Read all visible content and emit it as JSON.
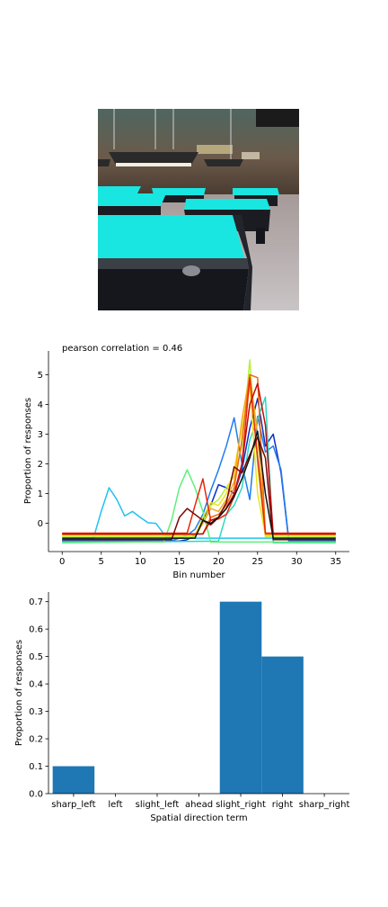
{
  "image": {
    "description": "",
    "colors": {
      "wall": "#6b5a4a",
      "felt": "#19e6e0",
      "table_body": "#1a1c22",
      "floor": "#b8b2b2",
      "lamp": "#2b2b2b"
    }
  },
  "chart_data": [
    {
      "type": "line",
      "title": "pearson correlation = 0.46",
      "xlabel": "Bin number",
      "ylabel": "Proportion of responses",
      "xlim": [
        -1.75,
        36.75
      ],
      "ylim": [
        -0.95,
        5.8
      ],
      "xticks": [
        0,
        5,
        10,
        15,
        20,
        25,
        30,
        35
      ],
      "yticks": [
        0,
        1,
        2,
        3,
        4,
        5
      ],
      "grid": false,
      "series": [
        {
          "color": "#0b2fc4",
          "x": [
            0,
            13,
            14,
            15,
            16,
            17,
            18,
            19,
            20,
            21,
            22,
            23,
            24,
            25,
            26,
            27,
            28,
            29,
            30,
            35
          ],
          "y": [
            -0.6,
            -0.6,
            -0.6,
            -0.6,
            -0.55,
            -0.4,
            0.1,
            0.6,
            1.3,
            1.2,
            1.0,
            1.8,
            3.2,
            4.2,
            2.6,
            3.0,
            1.7,
            -0.6,
            -0.6,
            -0.6
          ]
        },
        {
          "color": "#1f7cf0",
          "x": [
            0,
            14,
            15,
            16,
            17,
            18,
            19,
            20,
            21,
            22,
            23,
            24,
            25,
            26,
            27,
            28,
            29,
            35
          ],
          "y": [
            -0.58,
            -0.58,
            -0.5,
            -0.4,
            -0.2,
            0.3,
            1.1,
            1.8,
            2.6,
            3.55,
            2.0,
            0.8,
            3.6,
            2.4,
            2.6,
            1.8,
            -0.58,
            -0.58
          ]
        },
        {
          "color": "#1fc2ee",
          "x": [
            0,
            4,
            5,
            6,
            7,
            8,
            9,
            10,
            11,
            12,
            13,
            14,
            15,
            16,
            17,
            18,
            35
          ],
          "y": [
            -0.5,
            -0.5,
            0.4,
            1.2,
            0.8,
            0.25,
            0.4,
            0.2,
            0.02,
            0.0,
            -0.35,
            -0.5,
            -0.5,
            -0.5,
            -0.5,
            -0.5,
            -0.5
          ]
        },
        {
          "color": "#2bd9c0",
          "x": [
            0,
            20,
            21,
            22,
            23,
            24,
            25,
            26,
            27,
            35
          ],
          "y": [
            -0.65,
            -0.6,
            0.3,
            0.6,
            1.2,
            2.8,
            3.5,
            4.25,
            -0.65,
            -0.65
          ]
        },
        {
          "color": "#5cf07a",
          "x": [
            0,
            13,
            14,
            15,
            16,
            17,
            18,
            19,
            35
          ],
          "y": [
            -0.63,
            -0.63,
            0.1,
            1.2,
            1.8,
            1.2,
            0.4,
            -0.63,
            -0.63
          ]
        },
        {
          "color": "#b8f03a",
          "x": [
            0,
            17,
            18,
            19,
            20,
            21,
            22,
            23,
            24,
            25,
            26,
            27,
            35
          ],
          "y": [
            -0.45,
            -0.45,
            0.0,
            0.6,
            0.8,
            1.2,
            1.6,
            2.6,
            5.5,
            2.0,
            -0.45,
            -0.45,
            -0.45
          ]
        },
        {
          "color": "#f0e21f",
          "x": [
            0,
            17,
            18,
            19,
            20,
            21,
            22,
            23,
            24,
            25,
            26,
            35
          ],
          "y": [
            -0.4,
            -0.4,
            0.2,
            0.7,
            0.6,
            1.0,
            1.8,
            3.2,
            4.6,
            1.0,
            -0.4,
            -0.4
          ]
        },
        {
          "color": "#f5a91c",
          "x": [
            0,
            17,
            18,
            19,
            20,
            21,
            22,
            23,
            24,
            25,
            26,
            27,
            35
          ],
          "y": [
            -0.38,
            -0.38,
            0.0,
            0.5,
            0.4,
            0.8,
            1.4,
            3.5,
            5.0,
            3.0,
            -0.38,
            -0.38,
            -0.38
          ]
        },
        {
          "color": "#f06a0f",
          "x": [
            0,
            18,
            19,
            20,
            21,
            22,
            23,
            24,
            25,
            26,
            35
          ],
          "y": [
            -0.35,
            -0.35,
            0.2,
            0.3,
            0.6,
            1.2,
            2.8,
            5.0,
            4.9,
            -0.35,
            -0.35
          ]
        },
        {
          "color": "#e8260a",
          "x": [
            0,
            16,
            17,
            18,
            19,
            20,
            21,
            22,
            23,
            24,
            25,
            26,
            27,
            35
          ],
          "y": [
            -0.33,
            -0.33,
            0.6,
            1.5,
            0.1,
            0.15,
            0.3,
            0.9,
            2.0,
            4.9,
            2.2,
            -0.33,
            -0.33,
            -0.33
          ]
        },
        {
          "color": "#c40a0a",
          "x": [
            0,
            18,
            19,
            20,
            21,
            22,
            23,
            24,
            25,
            26,
            27,
            35
          ],
          "y": [
            -0.36,
            -0.36,
            0.1,
            0.2,
            0.5,
            1.0,
            2.0,
            4.0,
            4.7,
            3.3,
            -0.36,
            -0.36
          ]
        },
        {
          "color": "#7a0606",
          "x": [
            0,
            14,
            15,
            16,
            17,
            18,
            19,
            20,
            21,
            22,
            23,
            24,
            25,
            26,
            27,
            35
          ],
          "y": [
            -0.55,
            -0.55,
            0.2,
            0.5,
            0.3,
            0.1,
            -0.05,
            0.2,
            0.7,
            1.9,
            1.7,
            2.3,
            2.9,
            2.2,
            -0.55,
            -0.55
          ]
        },
        {
          "color": "#111111",
          "x": [
            0,
            17,
            18,
            19,
            20,
            21,
            22,
            23,
            24,
            25,
            26,
            27,
            35
          ],
          "y": [
            -0.5,
            -0.5,
            0.1,
            0.0,
            0.2,
            0.5,
            0.9,
            1.5,
            2.2,
            3.1,
            1.0,
            -0.5,
            -0.5
          ]
        }
      ]
    },
    {
      "type": "bar",
      "xlabel": "Spatial direction term",
      "ylabel": "Proportion of responses",
      "categories": [
        "sharp_left",
        "left",
        "slight_left",
        "ahead",
        "slight_right",
        "right",
        "sharp_right"
      ],
      "values": [
        0.1,
        0.0,
        0.0,
        0.0,
        0.7,
        0.5,
        0.0
      ],
      "ylim": [
        0,
        0.735
      ],
      "yticks": [
        0.0,
        0.1,
        0.2,
        0.3,
        0.4,
        0.5,
        0.6,
        0.7
      ],
      "color": "#1f77b4",
      "grid": false
    }
  ]
}
